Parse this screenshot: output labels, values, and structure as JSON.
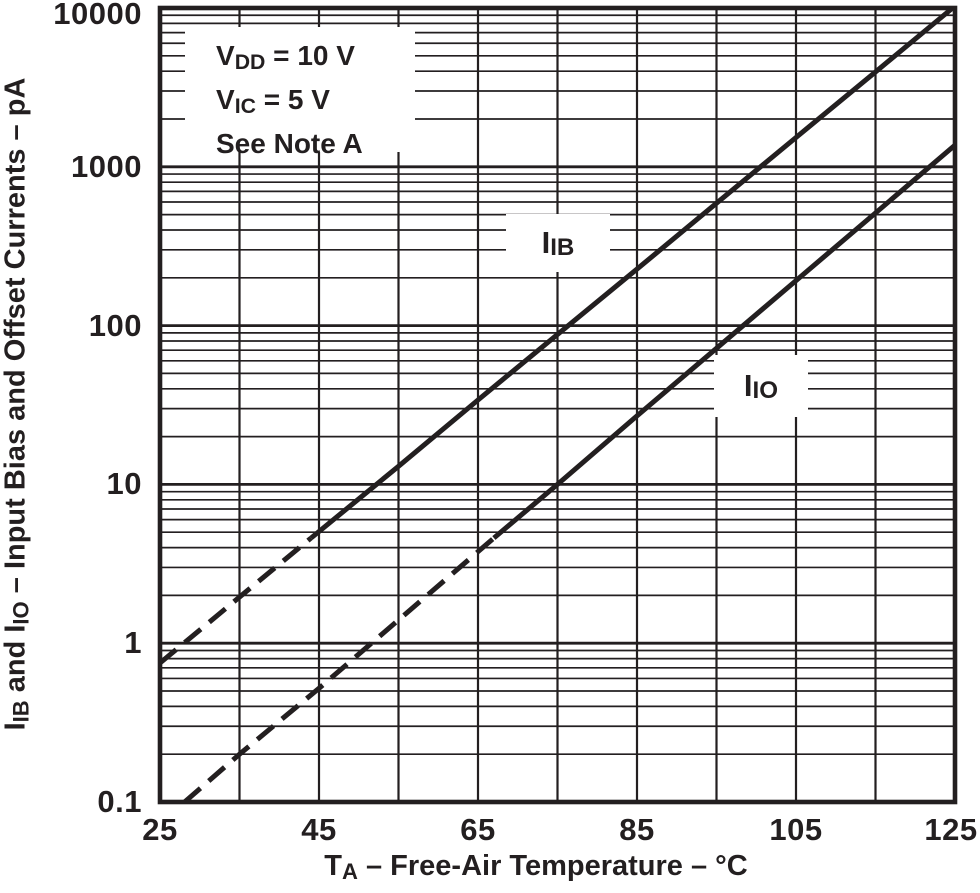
{
  "colors": {
    "ink": "#231f20",
    "background": "#ffffff"
  },
  "axes": {
    "y_tick_labels": [
      "10000",
      "1000",
      "100",
      "10",
      "1",
      "0.1"
    ],
    "x_tick_labels": [
      "25",
      "45",
      "65",
      "85",
      "105",
      "125"
    ],
    "x_title": {
      "main": "T",
      "sub": "A",
      "rest": " – Free-Air Temperature – °C"
    },
    "y_title": {
      "p1": "I",
      "s1": "IB",
      "p2": " and I",
      "s2": "IO",
      "p3": " – Input Bias and Offset Currents – pA"
    }
  },
  "annotation": {
    "vdd_pre": "V",
    "vdd_sub": "DD",
    "vdd_post": " = 10 V",
    "vic_pre": "V",
    "vic_sub": "IC",
    "vic_post": " = 5 V",
    "note": "See Note A"
  },
  "curve_labels": {
    "iib_main": "I",
    "iib_sub": "IB",
    "iio_main": "I",
    "iio_sub": "IO"
  },
  "chart_data": {
    "type": "line",
    "title": "",
    "xlabel": "TA – Free-Air Temperature – °C",
    "ylabel": "IIB and IIO – Input Bias and Offset Currents – pA",
    "conditions": [
      "VDD = 10 V",
      "VIC = 5 V",
      "See Note A"
    ],
    "x_axis": {
      "min": 25,
      "max": 125,
      "ticks": [
        25,
        45,
        65,
        85,
        105,
        125
      ],
      "minor_grid_step_C": 10
    },
    "y_axis": {
      "scale": "log",
      "min": 0.1,
      "max": 10000,
      "unit": "pA",
      "ticks": [
        10000,
        1000,
        100,
        10,
        1,
        0.1
      ],
      "minor_grid": "log decade lines 2-9"
    },
    "grid": true,
    "legend_position": "on-curve labels",
    "series": [
      {
        "name": "IIB",
        "style_note": "dashed (extrapolated) below ~44°C, solid above",
        "dashed_until_T": 44,
        "points": [
          [
            25,
            0.75
          ],
          [
            35,
            1.95
          ],
          [
            44,
            4.6
          ],
          [
            55,
            13
          ],
          [
            65,
            34
          ],
          [
            75,
            88
          ],
          [
            85,
            227
          ],
          [
            95,
            590
          ],
          [
            105,
            1530
          ],
          [
            115,
            3960
          ],
          [
            124.7,
            10000
          ]
        ]
      },
      {
        "name": "IIO",
        "style_note": "dashed (extrapolated) below ~67°C, solid above",
        "dashed_until_T": 67,
        "points": [
          [
            28.1,
            0.1
          ],
          [
            35,
            0.2
          ],
          [
            45,
            0.52
          ],
          [
            55,
            1.4
          ],
          [
            67,
            4.6
          ],
          [
            75,
            10
          ],
          [
            85,
            27
          ],
          [
            95,
            72
          ],
          [
            105,
            192
          ],
          [
            115,
            512
          ],
          [
            125,
            1370
          ]
        ]
      }
    ]
  }
}
